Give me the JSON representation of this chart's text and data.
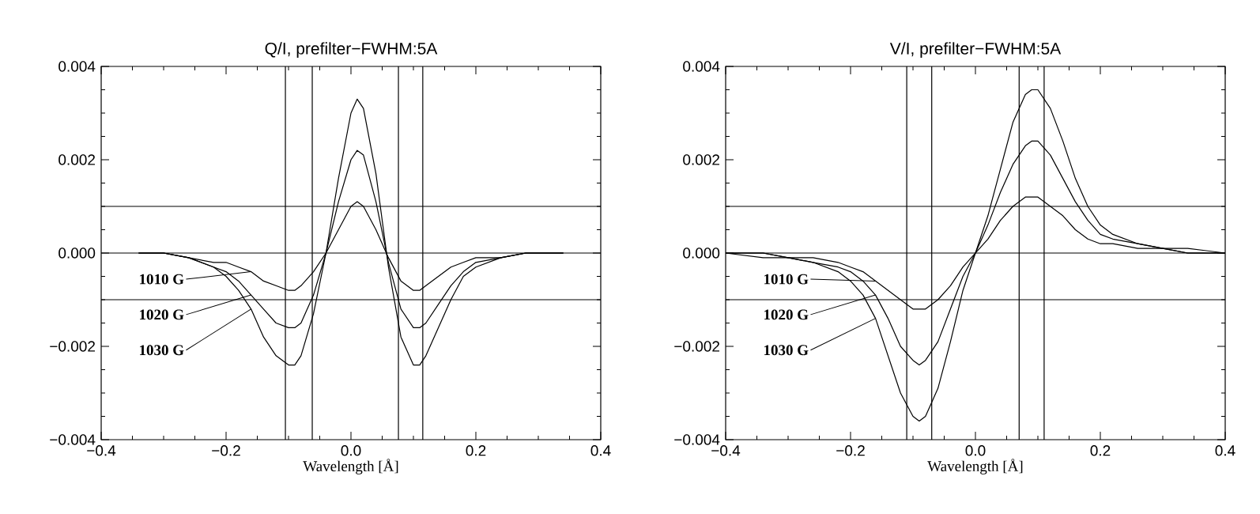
{
  "chart_data": [
    {
      "type": "line",
      "title": "Q/I, prefilter−FWHM:5A",
      "xlabel": "Wavelength [Å]",
      "legend": "left",
      "x": [
        -0.34,
        -0.3,
        -0.26,
        -0.22,
        -0.2,
        -0.18,
        -0.16,
        -0.14,
        -0.12,
        -0.1,
        -0.09,
        -0.08,
        -0.06,
        -0.04,
        -0.02,
        0.0,
        0.01,
        0.02,
        0.04,
        0.06,
        0.08,
        0.1,
        0.11,
        0.12,
        0.14,
        0.16,
        0.18,
        0.2,
        0.24,
        0.28,
        0.34
      ],
      "series": [
        {
          "name": "1010 G",
          "color": "#000000",
          "values": [
            0,
            0,
            -0.0001,
            -0.0002,
            -0.0002,
            -0.0003,
            -0.0004,
            -0.0006,
            -0.0007,
            -0.0008,
            -0.0008,
            -0.0007,
            -0.0004,
            0.0,
            0.0005,
            0.001,
            0.0011,
            0.001,
            0.0005,
            -0.0001,
            -0.0006,
            -0.0008,
            -0.0008,
            -0.0007,
            -0.0005,
            -0.0003,
            -0.0002,
            -0.0001,
            -0.0001,
            0,
            0
          ]
        },
        {
          "name": "1020 G",
          "color": "#000000",
          "values": [
            0,
            0,
            -0.0001,
            -0.0003,
            -0.0004,
            -0.0006,
            -0.0009,
            -0.0012,
            -0.0015,
            -0.0016,
            -0.0016,
            -0.0015,
            -0.0009,
            0.0,
            0.0011,
            0.002,
            0.0022,
            0.0021,
            0.0011,
            -0.0002,
            -0.0012,
            -0.0016,
            -0.0016,
            -0.0015,
            -0.0011,
            -0.0007,
            -0.0004,
            -0.0002,
            -0.0001,
            0,
            0
          ]
        },
        {
          "name": "1030 G",
          "color": "#000000",
          "values": [
            0,
            0,
            -0.0001,
            -0.0003,
            -0.0005,
            -0.0008,
            -0.0012,
            -0.0018,
            -0.0022,
            -0.0024,
            -0.0024,
            -0.0022,
            -0.0013,
            0.0,
            0.0016,
            0.003,
            0.0033,
            0.0031,
            0.0017,
            -0.0003,
            -0.0018,
            -0.0024,
            -0.0024,
            -0.0022,
            -0.0016,
            -0.001,
            -0.0005,
            -0.0003,
            -0.0001,
            0,
            0
          ]
        }
      ],
      "xlim": [
        -0.4,
        0.4
      ],
      "ylim": [
        -0.004,
        0.004
      ],
      "xticks": [
        {
          "value": -0.4,
          "label": "−0.4"
        },
        {
          "value": -0.2,
          "label": "−0.2"
        },
        {
          "value": 0,
          "label": "0.0"
        },
        {
          "value": 0.2,
          "label": "0.2"
        },
        {
          "value": 0.4,
          "label": "0.4"
        }
      ],
      "yticks": [
        {
          "value": -0.004,
          "label": "−0.004"
        },
        {
          "value": -0.002,
          "label": "−0.002"
        },
        {
          "value": 0,
          "label": "0.000"
        },
        {
          "value": 0.002,
          "label": "0.002"
        },
        {
          "value": 0.004,
          "label": "0.004"
        }
      ],
      "ref_lines": [
        {
          "axis": "y",
          "value": 0.001
        },
        {
          "axis": "y",
          "value": 0
        },
        {
          "axis": "y",
          "value": -0.001
        },
        {
          "axis": "x",
          "value": -0.105
        },
        {
          "axis": "x",
          "value": -0.062
        },
        {
          "axis": "x",
          "value": 0.076
        },
        {
          "axis": "x",
          "value": 0.115
        }
      ]
    },
    {
      "type": "line",
      "title": "V/I, prefilter−FWHM:5A",
      "xlabel": "Wavelength [Å]",
      "legend": "left",
      "x": [
        -0.4,
        -0.34,
        -0.3,
        -0.26,
        -0.22,
        -0.2,
        -0.18,
        -0.16,
        -0.14,
        -0.12,
        -0.1,
        -0.09,
        -0.08,
        -0.06,
        -0.04,
        -0.02,
        0.0,
        0.02,
        0.04,
        0.06,
        0.08,
        0.09,
        0.1,
        0.12,
        0.14,
        0.16,
        0.18,
        0.2,
        0.22,
        0.26,
        0.3,
        0.34,
        0.4
      ],
      "series": [
        {
          "name": "1010 G",
          "color": "#000000",
          "values": [
            0,
            0,
            -0.0001,
            -0.0001,
            -0.0002,
            -0.0003,
            -0.0004,
            -0.0006,
            -0.0008,
            -0.001,
            -0.0012,
            -0.0012,
            -0.0012,
            -0.001,
            -0.0007,
            -0.0003,
            0.0,
            0.0003,
            0.0007,
            0.001,
            0.0012,
            0.0012,
            0.0012,
            0.001,
            0.0008,
            0.0005,
            0.0003,
            0.0002,
            0.0002,
            0.0001,
            0.0001,
            0,
            0
          ]
        },
        {
          "name": "1020 G",
          "color": "#000000",
          "values": [
            0,
            0,
            -0.0001,
            -0.0002,
            -0.0003,
            -0.0004,
            -0.0006,
            -0.0009,
            -0.0014,
            -0.002,
            -0.0023,
            -0.0024,
            -0.0023,
            -0.0019,
            -0.0012,
            -0.0005,
            0.0,
            0.0006,
            0.0013,
            0.0019,
            0.0023,
            0.0024,
            0.0024,
            0.0021,
            0.0016,
            0.0011,
            0.0007,
            0.0004,
            0.0003,
            0.0002,
            0.0001,
            0,
            0
          ]
        },
        {
          "name": "1030 G",
          "color": "#000000",
          "values": [
            0,
            -0.0001,
            -0.0001,
            -0.0002,
            -0.0004,
            -0.0006,
            -0.0009,
            -0.0014,
            -0.0022,
            -0.003,
            -0.0035,
            -0.0036,
            -0.0035,
            -0.0029,
            -0.0019,
            -0.0008,
            0.0,
            0.0008,
            0.0018,
            0.0028,
            0.0034,
            0.0035,
            0.0035,
            0.0031,
            0.0024,
            0.0016,
            0.001,
            0.0006,
            0.0004,
            0.0002,
            0.0001,
            0.0001,
            0
          ]
        }
      ],
      "xlim": [
        -0.4,
        0.4
      ],
      "ylim": [
        -0.004,
        0.004
      ],
      "xticks": [
        {
          "value": -0.4,
          "label": "−0.4"
        },
        {
          "value": -0.2,
          "label": "−0.2"
        },
        {
          "value": 0,
          "label": "0.0"
        },
        {
          "value": 0.2,
          "label": "0.2"
        },
        {
          "value": 0.4,
          "label": "0.4"
        }
      ],
      "yticks": [
        {
          "value": -0.004,
          "label": "−0.004"
        },
        {
          "value": -0.002,
          "label": "−0.002"
        },
        {
          "value": 0,
          "label": "0.000"
        },
        {
          "value": 0.002,
          "label": "0.002"
        },
        {
          "value": 0.004,
          "label": "0.004"
        }
      ],
      "ref_lines": [
        {
          "axis": "y",
          "value": 0.001
        },
        {
          "axis": "y",
          "value": 0
        },
        {
          "axis": "y",
          "value": -0.001
        },
        {
          "axis": "x",
          "value": -0.11
        },
        {
          "axis": "x",
          "value": -0.07
        },
        {
          "axis": "x",
          "value": 0.07
        },
        {
          "axis": "x",
          "value": 0.11
        }
      ]
    }
  ]
}
